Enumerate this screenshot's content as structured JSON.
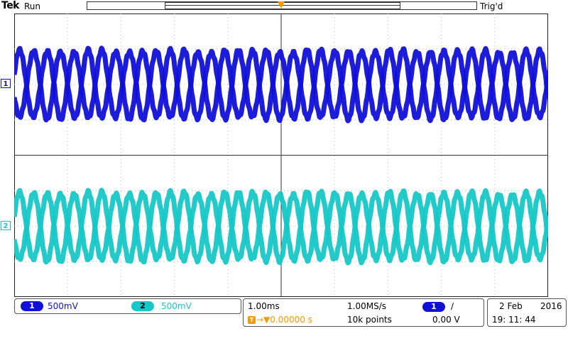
{
  "header": {
    "brand": "Tek",
    "run_state": "Run",
    "trigger_state": "Trig'd",
    "trigger_marker": "T"
  },
  "channels": {
    "ch1": {
      "label": "1",
      "scale": "500mV",
      "color": "#1010d8"
    },
    "ch2": {
      "label": "2",
      "scale": "500mV",
      "color": "#16c7c7"
    }
  },
  "horizontal": {
    "timebase": "1.00ms",
    "sample_rate": "1.00MS/s",
    "delay_icon": "T",
    "delay": "→▼0.00000 s",
    "record_length": "10k points",
    "trigger_source": "1",
    "trigger_slope": "∕",
    "trigger_level": "0.00 V"
  },
  "clock": {
    "date_day_month": "2 Feb",
    "year": "2016",
    "time": "19: 11: 44"
  },
  "icons": [
    "trigger-position-icon",
    "trigger-marker-icon",
    "rising-edge-icon"
  ]
}
